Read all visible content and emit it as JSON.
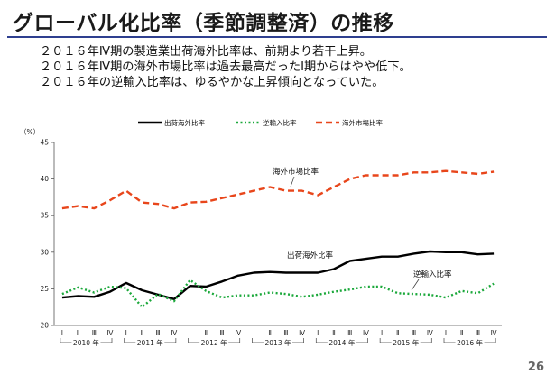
{
  "slide": {
    "title": "グローバル化比率（季節調整済）の推移",
    "bullets": [
      "２０１６年Ⅳ期の製造業出荷海外比率は、前期より若干上昇。",
      "２０１６年Ⅳ期の海外市場比率は過去最高だったⅠ期からはやや低下。",
      "２０１６年の逆輸入比率は、ゆるやかな上昇傾向となっていた。"
    ],
    "page_number": "26"
  },
  "chart_data": {
    "type": "line",
    "ylabel": "（%）",
    "ylim": [
      20,
      45
    ],
    "yticks": [
      20,
      25,
      30,
      35,
      40,
      45
    ],
    "grid": false,
    "legend_position": "top",
    "quarter_labels": [
      "Ⅰ",
      "Ⅱ",
      "Ⅲ",
      "Ⅳ",
      "Ⅰ",
      "Ⅱ",
      "Ⅲ",
      "Ⅳ",
      "Ⅰ",
      "Ⅱ",
      "Ⅲ",
      "Ⅳ",
      "Ⅰ",
      "Ⅱ",
      "Ⅲ",
      "Ⅳ",
      "Ⅰ",
      "Ⅱ",
      "Ⅲ",
      "Ⅳ",
      "Ⅰ",
      "Ⅱ",
      "Ⅲ",
      "Ⅳ",
      "Ⅰ",
      "Ⅱ",
      "Ⅲ",
      "Ⅳ"
    ],
    "year_labels": [
      "2010 年",
      "2011 年",
      "2012 年",
      "2013 年",
      "2014 年",
      "2015 年",
      "2016 年"
    ],
    "series": [
      {
        "name": "出荷海外比率",
        "color": "#000000",
        "style": "solid",
        "values": [
          23.8,
          24.0,
          23.9,
          24.6,
          25.8,
          24.8,
          24.2,
          23.6,
          25.4,
          25.3,
          26.0,
          26.8,
          27.2,
          27.3,
          27.2,
          27.2,
          27.2,
          27.7,
          28.8,
          29.1,
          29.4,
          29.4,
          29.8,
          30.1,
          30.0,
          30.0,
          29.7,
          29.8
        ]
      },
      {
        "name": "逆輸入比率",
        "color": "#1aa83a",
        "style": "dotted",
        "values": [
          24.3,
          25.2,
          24.5,
          25.3,
          25.1,
          22.5,
          24.3,
          23.3,
          26.2,
          24.7,
          23.8,
          24.1,
          24.1,
          24.5,
          24.3,
          23.9,
          24.2,
          24.6,
          24.9,
          25.3,
          25.3,
          24.4,
          24.3,
          24.2,
          23.8,
          24.7,
          24.4,
          25.7
        ]
      },
      {
        "name": "海外市場比率",
        "color": "#e8461b",
        "style": "dashed",
        "values": [
          36.0,
          36.3,
          36.0,
          37.1,
          38.4,
          36.8,
          36.6,
          36.0,
          36.8,
          36.9,
          37.4,
          37.9,
          38.4,
          38.9,
          38.4,
          38.4,
          37.8,
          38.9,
          40.0,
          40.5,
          40.5,
          40.5,
          40.9,
          40.9,
          41.1,
          40.9,
          40.7,
          41.0
        ]
      }
    ],
    "annotations": [
      "海外市場比率",
      "出荷海外比率",
      "逆輸入比率"
    ]
  }
}
